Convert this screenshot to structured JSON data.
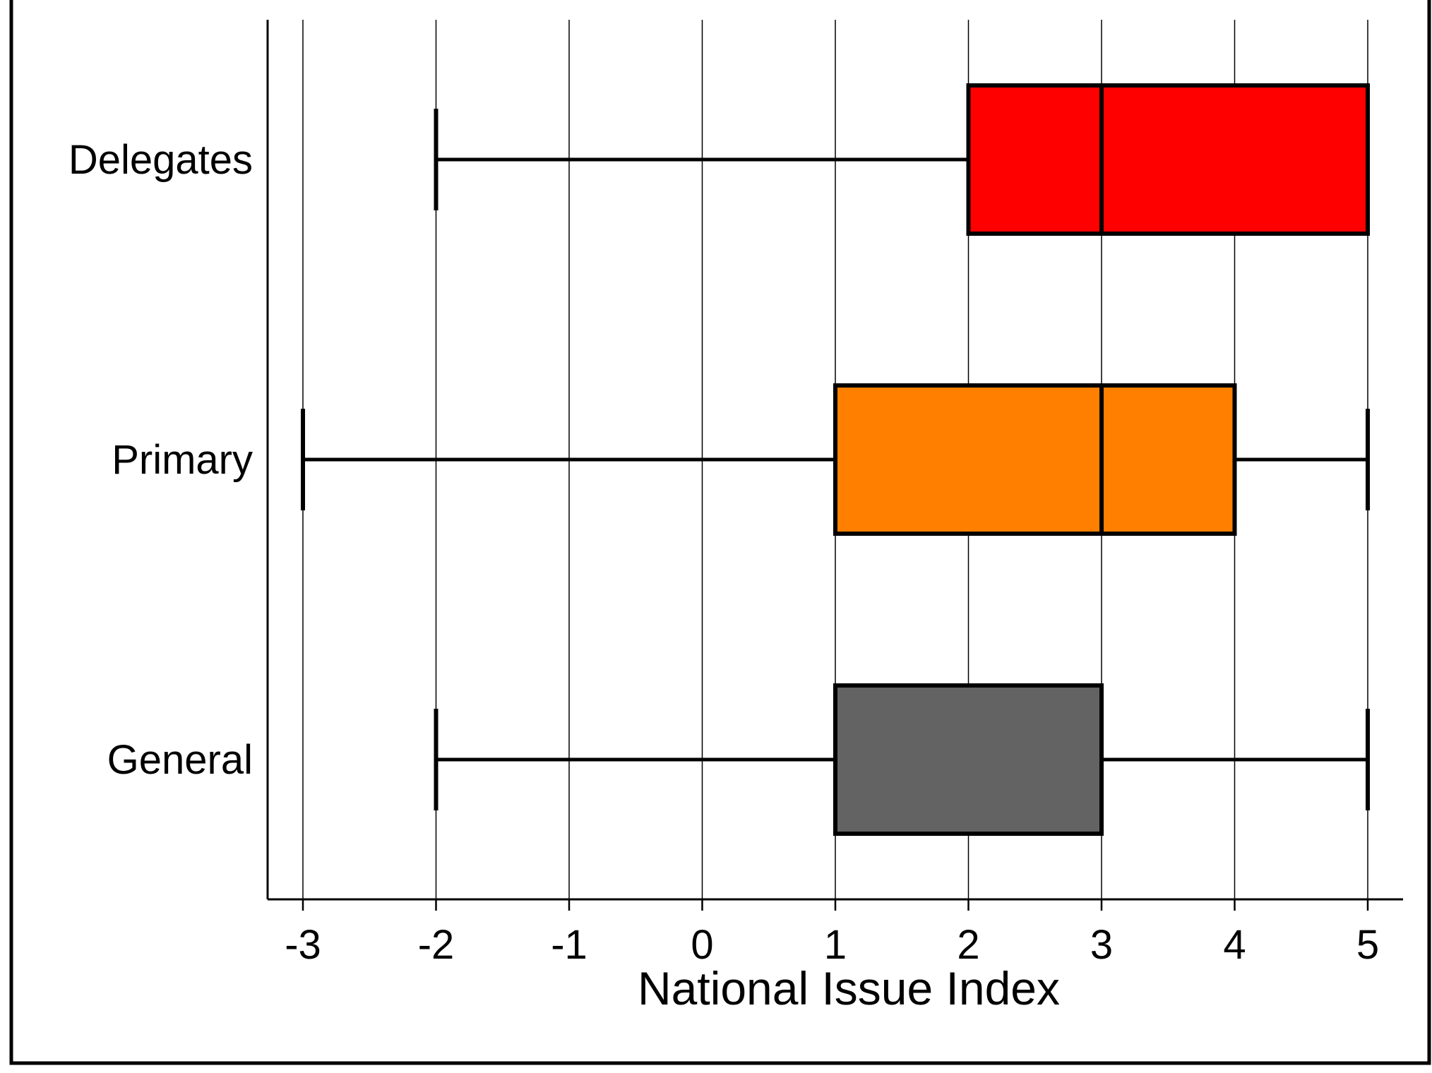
{
  "chart_data": {
    "type": "boxplot",
    "orientation": "horizontal",
    "xlabel": "National Issue Index",
    "ylabel": "",
    "xlim": [
      -3.25,
      5.25
    ],
    "ticks": [
      -3,
      -2,
      -1,
      0,
      1,
      2,
      3,
      4,
      5
    ],
    "tick_labels": [
      "-3",
      "-2",
      "-1",
      "0",
      "1",
      "2",
      "3",
      "4",
      "5"
    ],
    "grid": true,
    "categories": [
      "Delegates",
      "Primary",
      "General"
    ],
    "series": [
      {
        "category": "Delegates",
        "min": -2,
        "q1": 2,
        "median": 3,
        "q3": 5,
        "max": 5,
        "color": "#ff0000"
      },
      {
        "category": "Primary",
        "min": -3,
        "q1": 1,
        "median": 3,
        "q3": 4,
        "max": 5,
        "color": "#ff8000"
      },
      {
        "category": "General",
        "min": -2,
        "q1": 1,
        "median": 3,
        "q3": 3,
        "max": 5,
        "color": "#636363"
      }
    ]
  }
}
